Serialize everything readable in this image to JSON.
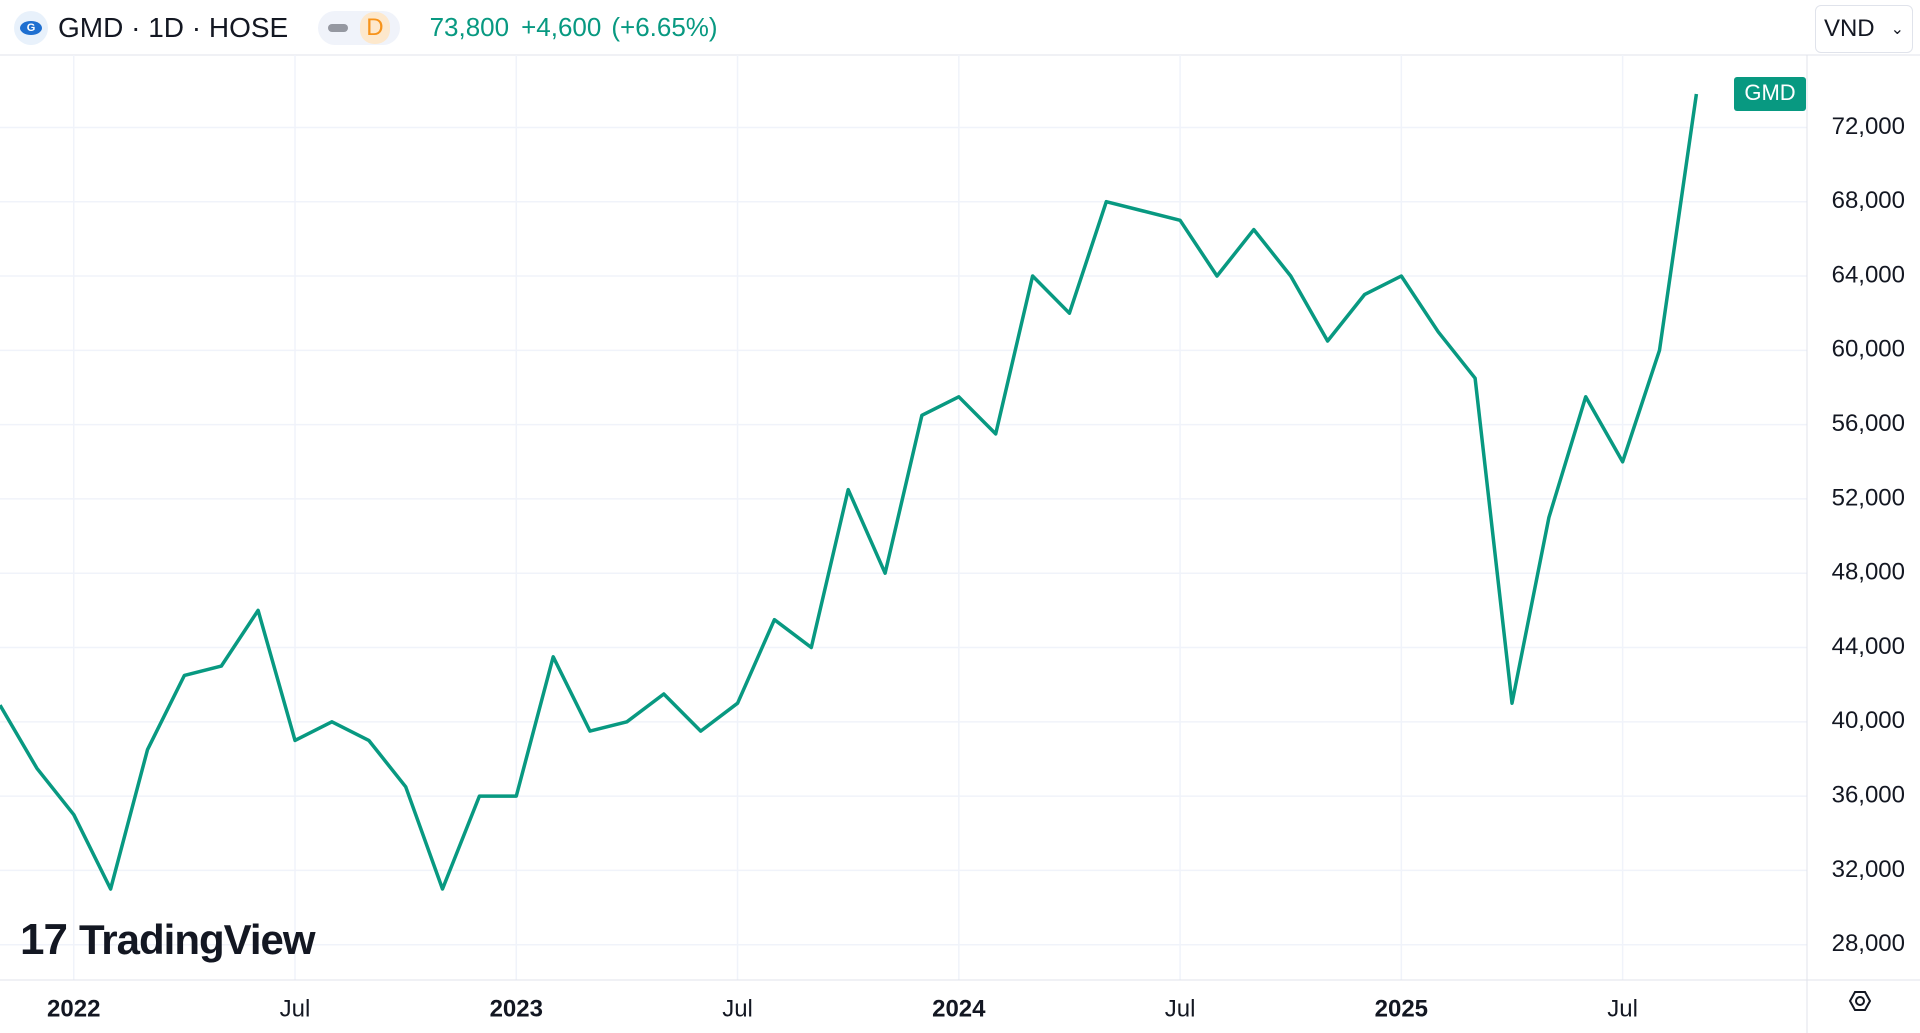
{
  "chart_data": {
    "type": "line",
    "title": "GMD · 1D · HOSE",
    "interval": "D",
    "price": "73,800",
    "change": "+4,600",
    "change_pct": "(+6.65%)",
    "currency": "VND",
    "watermark": "TradingView",
    "x": [
      "2021-11",
      "2021-12",
      "2022-01",
      "2022-02",
      "2022-03",
      "2022-04",
      "2022-05",
      "2022-06",
      "2022-07",
      "2022-08",
      "2022-09",
      "2022-10",
      "2022-11",
      "2022-12",
      "2023-01",
      "2023-02",
      "2023-03",
      "2023-04",
      "2023-05",
      "2023-06",
      "2023-07",
      "2023-08",
      "2023-09",
      "2023-10",
      "2023-11",
      "2023-12",
      "2024-01",
      "2024-02",
      "2024-03",
      "2024-04",
      "2024-05",
      "2024-06",
      "2024-07",
      "2024-08",
      "2024-09",
      "2024-10",
      "2024-11",
      "2024-12",
      "2025-01",
      "2025-02",
      "2025-03",
      "2025-04",
      "2025-05",
      "2025-06",
      "2025-07",
      "2025-08",
      "2025-09"
    ],
    "series": [
      {
        "name": "GMD",
        "color": "#089981",
        "values": [
          40900,
          37500,
          35000,
          31000,
          38500,
          42500,
          43000,
          46000,
          39000,
          40000,
          39000,
          36500,
          31000,
          36000,
          36000,
          43500,
          39500,
          40000,
          41500,
          39500,
          41000,
          45500,
          44000,
          52500,
          48000,
          56500,
          57500,
          55500,
          64000,
          62000,
          68000,
          67500,
          67000,
          64000,
          66500,
          64000,
          60500,
          63000,
          64000,
          61000,
          58500,
          41000,
          51000,
          57500,
          54000,
          60000,
          73800
        ]
      }
    ],
    "xlim": [
      "2021-11",
      "2025-12"
    ],
    "xticks": [
      {
        "value": "2022-01",
        "label": "2022"
      },
      {
        "value": "2022-07",
        "label": "Jul"
      },
      {
        "value": "2023-01",
        "label": "2023"
      },
      {
        "value": "2023-07",
        "label": "Jul"
      },
      {
        "value": "2024-01",
        "label": "2024"
      },
      {
        "value": "2024-07",
        "label": "Jul"
      },
      {
        "value": "2025-01",
        "label": "2025"
      },
      {
        "value": "2025-07",
        "label": "Jul"
      }
    ],
    "ylim": [
      26100,
      75900
    ],
    "yticks": [
      {
        "value": 28000,
        "label": "28,000"
      },
      {
        "value": 32000,
        "label": "32,000"
      },
      {
        "value": 36000,
        "label": "36,000"
      },
      {
        "value": 40000,
        "label": "40,000"
      },
      {
        "value": 44000,
        "label": "44,000"
      },
      {
        "value": 48000,
        "label": "48,000"
      },
      {
        "value": 52000,
        "label": "52,000"
      },
      {
        "value": 56000,
        "label": "56,000"
      },
      {
        "value": 60000,
        "label": "60,000"
      },
      {
        "value": 64000,
        "label": "64,000"
      },
      {
        "value": 68000,
        "label": "68,000"
      },
      {
        "value": 72000,
        "label": "72,000"
      }
    ],
    "grid": true
  }
}
